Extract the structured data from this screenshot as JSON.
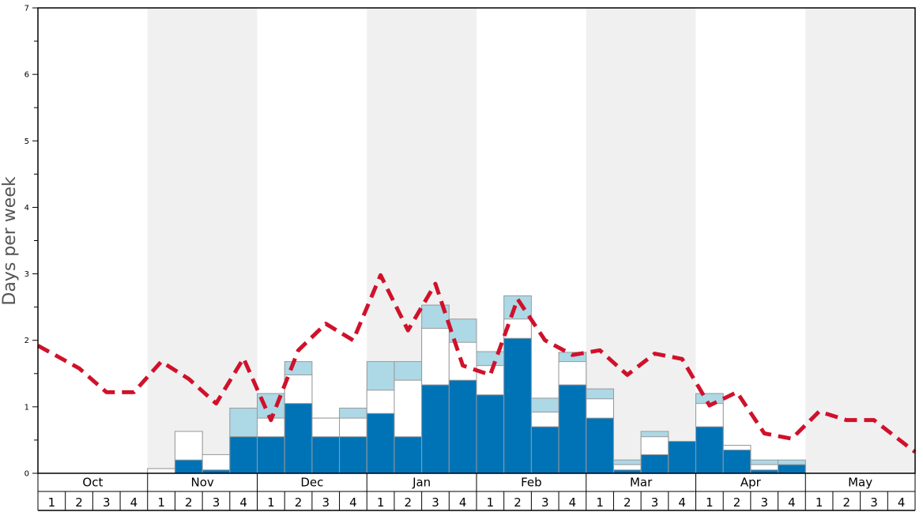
{
  "chart_data": {
    "type": "bar",
    "title": "",
    "xlabel": "",
    "ylabel": "Days per week",
    "ylim": [
      0,
      7
    ],
    "y_ticks": [
      "0",
      "1",
      "2",
      "3",
      "4",
      "5",
      "6",
      "7"
    ],
    "months": [
      "Oct",
      "Nov",
      "Dec",
      "Jan",
      "Feb",
      "Mar",
      "Apr",
      "May"
    ],
    "week_labels": [
      "1",
      "2",
      "3",
      "4"
    ],
    "categories": [
      "Oct 1",
      "Oct 2",
      "Oct 3",
      "Oct 4",
      "Nov 1",
      "Nov 2",
      "Nov 3",
      "Nov 4",
      "Dec 1",
      "Dec 2",
      "Dec 3",
      "Dec 4",
      "Jan 1",
      "Jan 2",
      "Jan 3",
      "Jan 4",
      "Feb 1",
      "Feb 2",
      "Feb 3",
      "Feb 4",
      "Mar 1",
      "Mar 2",
      "Mar 3",
      "Mar 4",
      "Apr 1",
      "Apr 2",
      "Apr 3",
      "Apr 4",
      "May 1",
      "May 2",
      "May 3",
      "May 4"
    ],
    "series": [
      {
        "values": [
          0,
          0,
          0,
          0,
          0,
          0.2,
          0.05,
          0.55,
          0.55,
          1.05,
          0.55,
          0.55,
          0.9,
          0.55,
          1.33,
          1.4,
          1.18,
          2.03,
          0.7,
          1.33,
          0.83,
          0.05,
          0.28,
          0.48,
          0.7,
          0.35,
          0.05,
          0.13,
          0,
          0,
          0,
          0
        ],
        "color": "#0073b7"
      },
      {
        "values": [
          0,
          0,
          0,
          0,
          0.07,
          0.63,
          0.28,
          0.55,
          0.83,
          1.48,
          0.83,
          0.83,
          1.25,
          1.4,
          2.18,
          1.97,
          1.62,
          2.32,
          0.92,
          1.68,
          1.12,
          0.13,
          0.55,
          0.48,
          1.05,
          0.42,
          0.13,
          0.13,
          0,
          0,
          0,
          0
        ],
        "color": "#ffffff"
      },
      {
        "values": [
          0,
          0,
          0,
          0,
          0.07,
          0.63,
          0.28,
          0.98,
          1.2,
          1.68,
          0.83,
          0.98,
          1.68,
          1.68,
          2.53,
          2.32,
          1.83,
          2.67,
          1.13,
          1.82,
          1.27,
          0.2,
          0.63,
          0.48,
          1.2,
          0.42,
          0.2,
          0.2,
          0,
          0,
          0,
          0
        ],
        "color": "#add8e6"
      },
      {
        "type": "line",
        "style": "dashed",
        "color": "#d0112b",
        "values": [
          1.92,
          1.58,
          1.22,
          1.22,
          1.68,
          1.42,
          1.05,
          1.73,
          0.8,
          1.85,
          2.25,
          2.0,
          2.98,
          2.15,
          2.85,
          1.62,
          1.48,
          2.62,
          2.0,
          1.78,
          1.85,
          1.48,
          1.8,
          1.72,
          1.02,
          1.22,
          0.6,
          0.52,
          0.93,
          0.8,
          0.8,
          0.32
        ]
      }
    ],
    "grid": false,
    "month_shading": [
      "white",
      "gray",
      "white",
      "gray",
      "white",
      "gray",
      "white",
      "gray"
    ],
    "shade_color": "#f0f0f0"
  }
}
